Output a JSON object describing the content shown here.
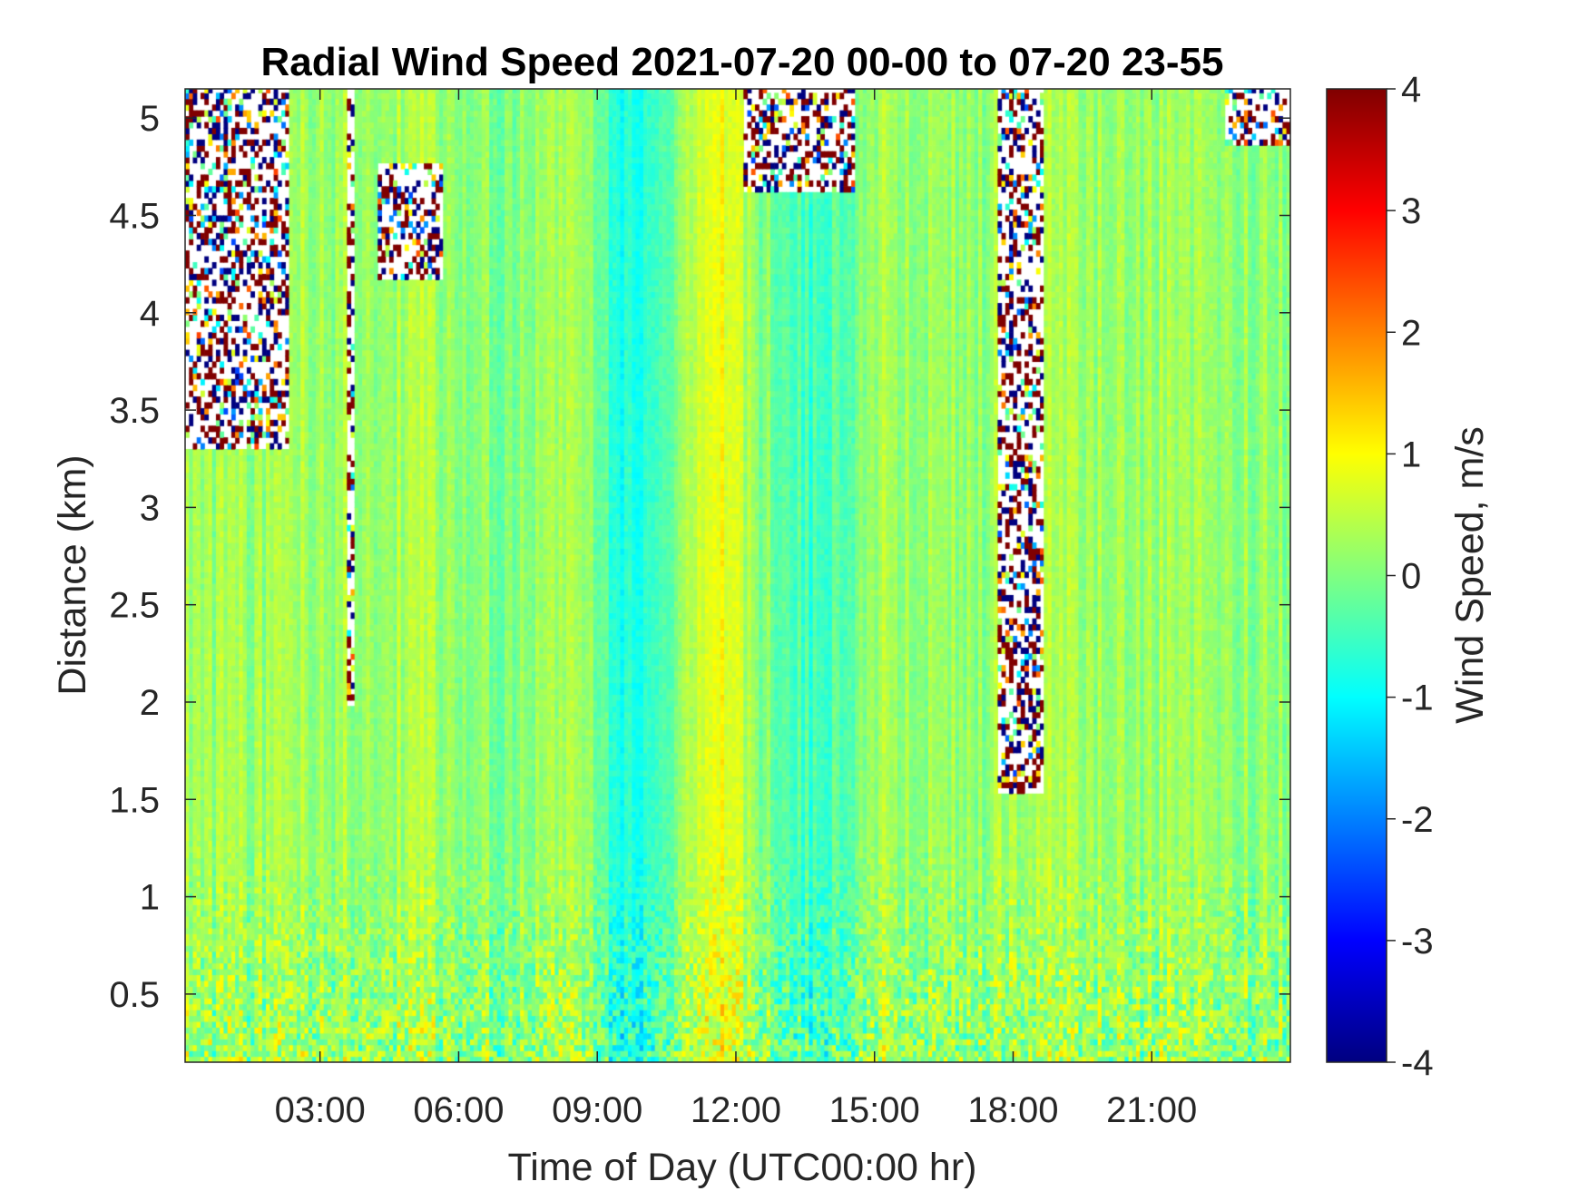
{
  "chart_data": {
    "type": "heatmap",
    "title": "Radial Wind Speed 2021-07-20 00-00 to 07-20 23-55",
    "xlabel": "Time of Day (UTC00:00 hr)",
    "ylabel": "Distance (km)",
    "colorbar_label": "Wind Speed, m/s",
    "colormap": "jet",
    "xlim": [
      0.08,
      24.0
    ],
    "ylim": [
      0.15,
      5.15
    ],
    "clim": [
      -4,
      4
    ],
    "x_ticks": [
      3,
      6,
      9,
      12,
      15,
      18,
      21
    ],
    "x_tick_labels": [
      "03:00",
      "06:00",
      "09:00",
      "12:00",
      "15:00",
      "18:00",
      "21:00"
    ],
    "y_ticks": [
      0.5,
      1,
      1.5,
      2,
      2.5,
      3,
      3.5,
      4,
      4.5,
      5
    ],
    "y_tick_labels": [
      "0.5",
      "1",
      "1.5",
      "2",
      "2.5",
      "3",
      "3.5",
      "4",
      "4.5",
      "5"
    ],
    "colorbar_ticks": [
      -4,
      -3,
      -2,
      -1,
      0,
      1,
      2,
      3,
      4
    ],
    "colorbar_tick_labels": [
      "-4",
      "-3",
      "-2",
      "-1",
      "0",
      "1",
      "2",
      "3",
      "4"
    ],
    "time_step_min": 5,
    "background_speed_by_hour": [
      {
        "t": 0,
        "v": 0.2
      },
      {
        "t": 3,
        "v": 0.25
      },
      {
        "t": 5,
        "v": 0.3
      },
      {
        "t": 7,
        "v": 0.0
      },
      {
        "t": 8.5,
        "v": 0.5
      },
      {
        "t": 9.5,
        "v": -0.9
      },
      {
        "t": 10.5,
        "v": -0.3
      },
      {
        "t": 11.5,
        "v": 1.1
      },
      {
        "t": 12.5,
        "v": 0.1
      },
      {
        "t": 13.7,
        "v": -0.6
      },
      {
        "t": 15,
        "v": 0.3
      },
      {
        "t": 17,
        "v": 0.1
      },
      {
        "t": 18.5,
        "v": 0.4
      },
      {
        "t": 20,
        "v": 0.2
      },
      {
        "t": 22,
        "v": 0.2
      },
      {
        "t": 24,
        "v": 0.1
      }
    ],
    "missing_data_regions": [
      {
        "t_start": 0.08,
        "t_end": 2.3,
        "d_start": 3.3,
        "d_end": 5.15
      },
      {
        "t_start": 3.55,
        "t_end": 3.72,
        "d_start": 1.95,
        "d_end": 5.15
      },
      {
        "t_start": 4.2,
        "t_end": 5.6,
        "d_start": 4.15,
        "d_end": 4.75
      },
      {
        "t_start": 12.1,
        "t_end": 14.5,
        "d_start": 4.6,
        "d_end": 5.15
      },
      {
        "t_start": 17.6,
        "t_end": 18.6,
        "d_start": 1.5,
        "d_end": 5.15
      },
      {
        "t_start": 22.5,
        "t_end": 24.0,
        "d_start": 4.85,
        "d_end": 5.15
      }
    ]
  }
}
